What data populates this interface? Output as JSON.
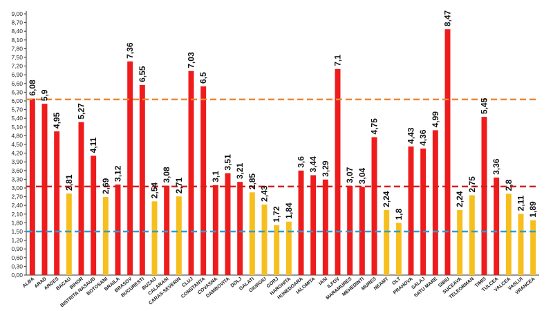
{
  "chart_data": {
    "type": "bar",
    "title": "",
    "xlabel": "",
    "ylabel": "",
    "ylim": [
      0,
      9.0
    ],
    "ytick_step": 0.3,
    "ytick_labels": [
      "0,00",
      "0,30",
      "0,60",
      "0,90",
      "1,20",
      "1,50",
      "1,80",
      "2,10",
      "2,40",
      "2,70",
      "3,00",
      "3,30",
      "3,60",
      "3,90",
      "4,20",
      "4,50",
      "4,80",
      "5,10",
      "5,40",
      "5,70",
      "6,00",
      "6,30",
      "6,60",
      "6,90",
      "7,20",
      "7,50",
      "7,80",
      "8,10",
      "8,40",
      "8,70",
      "9,00"
    ],
    "categories": [
      "ALBA",
      "ARAD",
      "ARGES",
      "BACAU",
      "BIHOR",
      "BISTRITA NASAUD",
      "BOTOSANI",
      "BRAILA",
      "BRASOV",
      "BUCURESTI",
      "BUZAU",
      "CALARASI",
      "CARAS-SEVERIN",
      "CLUJ",
      "CONSTANTA",
      "COVASNA",
      "DAMBOVITA",
      "DOLJ",
      "GALATI",
      "GIURGIU",
      "GORJ",
      "HARGHITA",
      "HUNEDOARA",
      "IALOMITA",
      "IASI",
      "ILFOV",
      "MARAMURES",
      "MEHEDINTI",
      "MURES",
      "NEAMT",
      "OLT",
      "PRAHOVA",
      "SALAJ",
      "SATU MARE",
      "SIBIU",
      "SUCEAVA",
      "TELEORMAN",
      "TIMIS",
      "TULCEA",
      "VALCEA",
      "VASLUI",
      "VRANCEA"
    ],
    "values": [
      6.08,
      5.9,
      4.95,
      2.81,
      5.27,
      4.11,
      2.69,
      3.12,
      7.36,
      6.55,
      2.54,
      3.08,
      2.71,
      7.03,
      6.5,
      3.1,
      3.51,
      3.21,
      2.85,
      2.43,
      1.72,
      1.84,
      3.6,
      3.44,
      3.29,
      7.1,
      3.07,
      3.04,
      4.75,
      2.24,
      1.8,
      4.43,
      4.36,
      4.99,
      8.47,
      2.24,
      2.75,
      5.45,
      3.36,
      2.8,
      2.11,
      1.89
    ],
    "value_labels": [
      "6,08",
      "5,9",
      "4,95",
      "2,81",
      "5,27",
      "4,11",
      "2,69",
      "3,12",
      "7,36",
      "6,55",
      "2,54",
      "3,08",
      "2,71",
      "7,03",
      "6,5",
      "3,1",
      "3,51",
      "3,21",
      "2,85",
      "2,43",
      "1,72",
      "1,84",
      "3,6",
      "3,44",
      "3,29",
      "7,1",
      "3,07",
      "3,04",
      "4,75",
      "2,24",
      "1,8",
      "4,43",
      "4,36",
      "4,99",
      "8,47",
      "2,24",
      "2,75",
      "5,45",
      "3,36",
      "2,8",
      "2,11",
      "1,89"
    ],
    "bar_colors": [
      "red",
      "red",
      "red",
      "yellow",
      "red",
      "red",
      "yellow",
      "red",
      "red",
      "red",
      "yellow",
      "red",
      "yellow",
      "red",
      "red",
      "red",
      "red",
      "red",
      "yellow",
      "yellow",
      "yellow",
      "yellow",
      "red",
      "red",
      "red",
      "red",
      "red",
      "red",
      "red",
      "yellow",
      "yellow",
      "red",
      "red",
      "red",
      "red",
      "yellow",
      "yellow",
      "red",
      "red",
      "yellow",
      "yellow",
      "yellow"
    ],
    "colors": {
      "red": "#ee1c1c",
      "yellow": "#f7bf1e",
      "axis": "#333333"
    },
    "reference_lines": [
      {
        "value": 6.05,
        "color": "#e8883a"
      },
      {
        "value": 3.05,
        "color": "#d42020"
      },
      {
        "value": 1.5,
        "color": "#2a9fd6"
      }
    ]
  }
}
